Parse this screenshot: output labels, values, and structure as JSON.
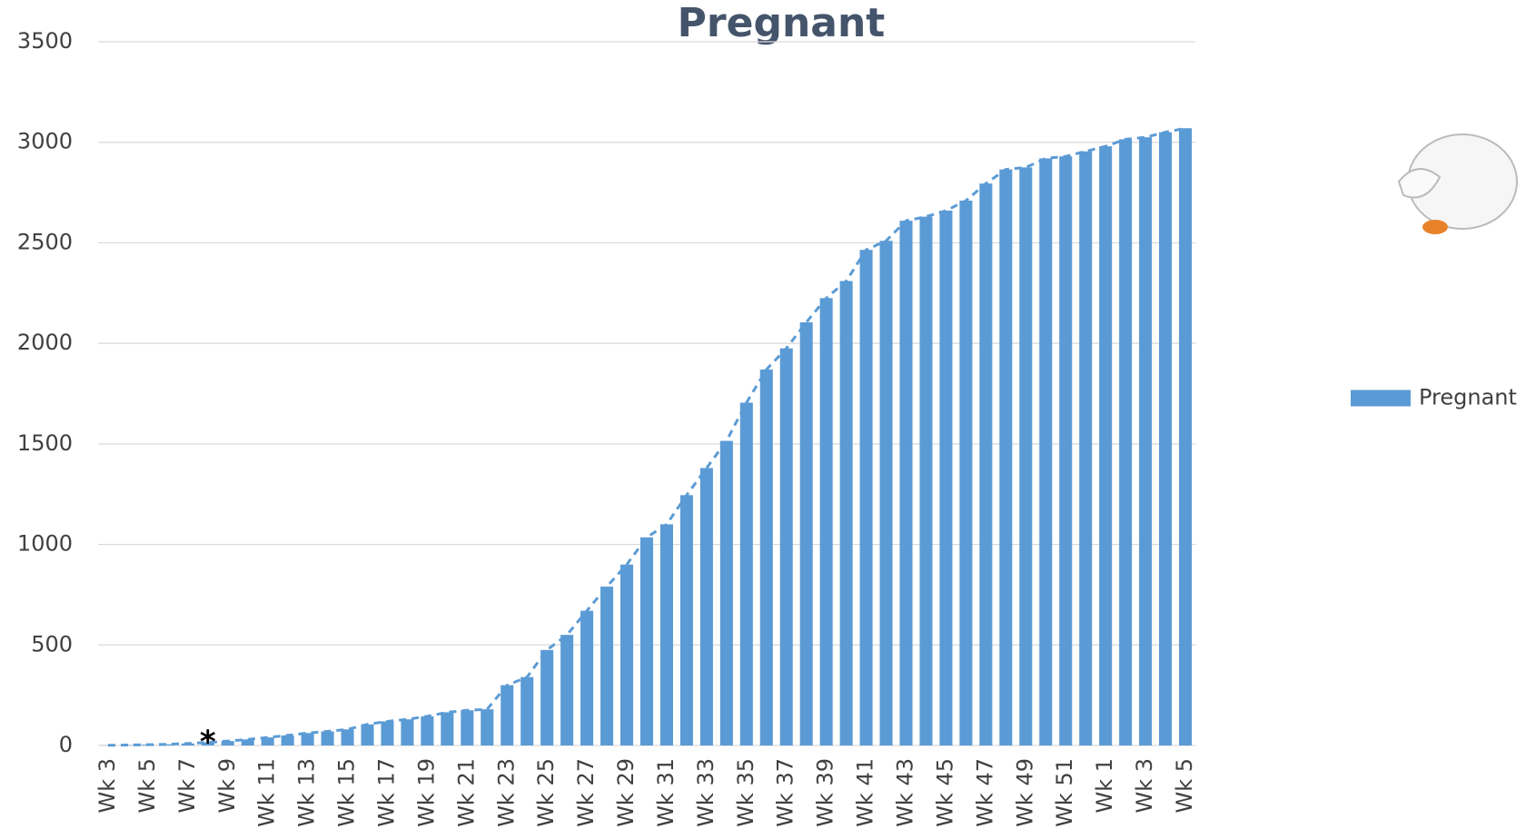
{
  "chart_data": {
    "type": "bar",
    "title": "Pregnant",
    "categories": [
      "Wk 3",
      null,
      "Wk 5",
      null,
      "Wk 7",
      null,
      "Wk 9",
      null,
      "Wk 11",
      null,
      "Wk 13",
      null,
      "Wk 15",
      null,
      "Wk 17",
      null,
      "Wk 19",
      null,
      "Wk 21",
      null,
      "Wk 23",
      null,
      "Wk 25",
      null,
      "Wk 27",
      null,
      "Wk 29",
      null,
      "Wk 31",
      null,
      "Wk 33",
      null,
      "Wk 35",
      null,
      "Wk 37",
      null,
      "Wk 39",
      null,
      "Wk 41",
      null,
      "Wk 43",
      null,
      "Wk 45",
      null,
      "Wk 47",
      null,
      "Wk 49",
      null,
      "Wk 51",
      null,
      "Wk 1",
      null,
      "Wk 3",
      null,
      "Wk 5"
    ],
    "series": [
      {
        "name": "Pregnant",
        "color": "#5b9bd5",
        "values": [
          1,
          2,
          4,
          6,
          10,
          15,
          22,
          30,
          40,
          50,
          62,
          70,
          80,
          105,
          120,
          130,
          145,
          165,
          175,
          180,
          300,
          340,
          475,
          550,
          670,
          790,
          900,
          1035,
          1100,
          1245,
          1380,
          1515,
          1705,
          1870,
          1975,
          2105,
          2225,
          2310,
          2465,
          2510,
          2610,
          2630,
          2660,
          2710,
          2795,
          2865,
          2875,
          2920,
          2930,
          2955,
          2980,
          3015,
          3025,
          3050,
          3070
        ]
      }
    ],
    "ylim": [
      0,
      3500
    ],
    "yticks": [
      0,
      500,
      1000,
      1500,
      2000,
      2500,
      3000,
      3500
    ],
    "grid": true,
    "legend": "right",
    "annotation": {
      "text": "*",
      "index": 5
    }
  }
}
